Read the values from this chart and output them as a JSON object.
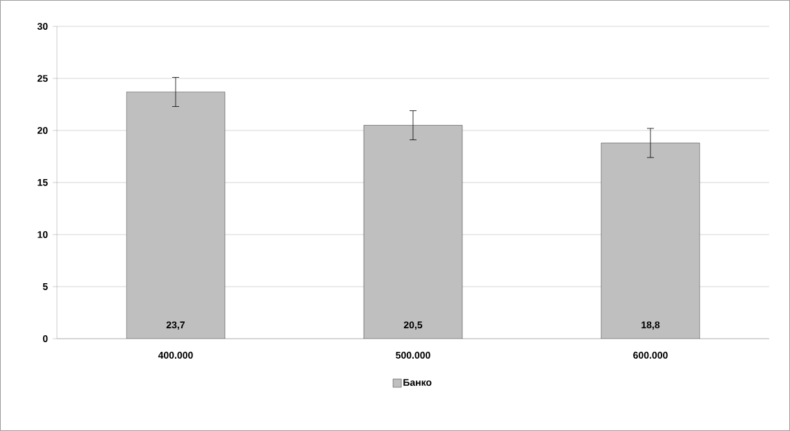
{
  "chart_data": {
    "type": "bar",
    "categories": [
      "400.000",
      "500.000",
      "600.000"
    ],
    "series": [
      {
        "name": "Банко",
        "color": "#bfbfbf",
        "values": [
          23.7,
          20.5,
          18.8
        ],
        "value_labels": [
          "23,7",
          "20,5",
          "18,8"
        ],
        "errors": [
          1.4,
          1.4,
          1.4
        ]
      }
    ],
    "ylim": [
      0,
      30
    ],
    "yticks": [
      0,
      5,
      10,
      15,
      20,
      25,
      30
    ],
    "grid": "y",
    "legend": "bottom"
  }
}
